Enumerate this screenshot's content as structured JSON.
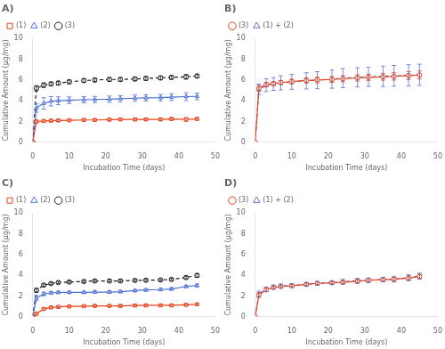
{
  "chart_data": [
    {
      "type": "line",
      "title": "A)",
      "xlabel": "Incubation Time (days)",
      "ylabel": "Cumulative Amount (µg/mg)",
      "x": [
        0,
        1,
        3,
        5,
        7,
        10,
        14,
        17,
        21,
        24,
        28,
        31,
        35,
        38,
        42,
        45
      ],
      "series": [
        {
          "name": "(1)",
          "color": "#e8401a",
          "marker": "square",
          "line_style": "solid",
          "values": [
            0,
            2.0,
            2.05,
            2.08,
            2.1,
            2.12,
            2.15,
            2.15,
            2.18,
            2.2,
            2.2,
            2.2,
            2.2,
            2.25,
            2.2,
            2.25
          ],
          "yerr": [
            0,
            0.12,
            0.1,
            0.1,
            0.1,
            0.1,
            0.1,
            0.1,
            0.1,
            0.1,
            0.1,
            0.1,
            0.1,
            0.12,
            0.18,
            0.1
          ]
        },
        {
          "name": "(2)",
          "color": "#4a6fd4",
          "marker": "triangle",
          "line_style": "solid",
          "values": [
            0,
            3.3,
            3.75,
            3.95,
            4.0,
            4.05,
            4.1,
            4.12,
            4.15,
            4.2,
            4.25,
            4.28,
            4.3,
            4.35,
            4.4,
            4.42
          ],
          "yerr": [
            0,
            0.4,
            0.55,
            0.45,
            0.38,
            0.32,
            0.3,
            0.3,
            0.3,
            0.3,
            0.3,
            0.3,
            0.3,
            0.32,
            0.38,
            0.32
          ]
        },
        {
          "name": "(3)",
          "color": "#1a1a1a",
          "marker": "circle",
          "line_style": "dashed",
          "values": [
            0,
            5.2,
            5.5,
            5.62,
            5.7,
            5.82,
            5.95,
            6.0,
            6.05,
            6.05,
            6.1,
            6.15,
            6.2,
            6.25,
            6.3,
            6.38
          ],
          "yerr": [
            0,
            0.25,
            0.22,
            0.18,
            0.18,
            0.18,
            0.18,
            0.18,
            0.18,
            0.18,
            0.18,
            0.18,
            0.18,
            0.18,
            0.22,
            0.18
          ]
        }
      ],
      "xlim": [
        0,
        50
      ],
      "xticks": [
        0,
        10,
        20,
        30,
        40,
        50
      ],
      "ylim": [
        0,
        10
      ],
      "yticks": [
        0,
        2,
        4,
        6,
        8,
        10
      ],
      "grid": false,
      "legend": "upper left"
    },
    {
      "type": "line",
      "title": "B)",
      "xlabel": "Incubation Time (days)",
      "ylabel": "Cumulative Amount (µg/mg)",
      "x": [
        0,
        1,
        3,
        5,
        7,
        10,
        14,
        17,
        21,
        24,
        28,
        31,
        35,
        38,
        42,
        45
      ],
      "series": [
        {
          "name": "(3)",
          "color": "#e8401a",
          "marker": "circle",
          "line_style": "solid",
          "values": [
            0,
            5.2,
            5.55,
            5.65,
            5.75,
            5.85,
            5.95,
            6.0,
            6.05,
            6.12,
            6.2,
            6.25,
            6.3,
            6.35,
            6.42,
            6.48
          ],
          "yerr": [
            0,
            0.28,
            0.22,
            0.18,
            0.18,
            0.22,
            0.25,
            0.28,
            0.28,
            0.3,
            0.3,
            0.3,
            0.32,
            0.35,
            0.38,
            0.38
          ]
        },
        {
          "name": "(1) + (2)",
          "color": "#6070c8",
          "marker": "triangle",
          "line_style": "dashed",
          "values": [
            0,
            5.1,
            5.5,
            5.62,
            5.72,
            5.82,
            5.92,
            5.98,
            6.08,
            6.18,
            6.25,
            6.3,
            6.35,
            6.4,
            6.45,
            6.5
          ],
          "yerr": [
            0,
            0.5,
            0.62,
            0.62,
            0.68,
            0.72,
            0.78,
            0.82,
            0.88,
            0.92,
            0.92,
            0.92,
            0.98,
            1.0,
            1.02,
            1.02
          ]
        }
      ],
      "xlim": [
        0,
        50
      ],
      "xticks": [
        0,
        10,
        20,
        30,
        40,
        50
      ],
      "ylim": [
        0,
        10
      ],
      "yticks": [
        0,
        2,
        4,
        6,
        8,
        10
      ],
      "grid": false,
      "legend": "upper left"
    },
    {
      "type": "line",
      "title": "C)",
      "xlabel": "Incubation Time (days)",
      "ylabel": "Cumulative Amount (µg/mg)",
      "x": [
        0,
        1,
        3,
        5,
        7,
        10,
        14,
        17,
        21,
        24,
        28,
        31,
        35,
        38,
        42,
        45
      ],
      "series": [
        {
          "name": "(1)",
          "color": "#e8401a",
          "marker": "square",
          "line_style": "solid",
          "values": [
            0,
            0.3,
            0.75,
            0.9,
            0.95,
            1.0,
            1.02,
            1.05,
            1.05,
            1.05,
            1.08,
            1.1,
            1.1,
            1.1,
            1.15,
            1.2
          ],
          "yerr": [
            0,
            0.12,
            0.1,
            0.08,
            0.08,
            0.08,
            0.08,
            0.08,
            0.08,
            0.08,
            0.08,
            0.08,
            0.08,
            0.08,
            0.08,
            0.08
          ]
        },
        {
          "name": "(2)",
          "color": "#4a6fd4",
          "marker": "triangle",
          "line_style": "solid",
          "values": [
            0,
            1.8,
            2.2,
            2.3,
            2.35,
            2.35,
            2.35,
            2.38,
            2.38,
            2.42,
            2.52,
            2.58,
            2.62,
            2.68,
            2.92,
            3.02
          ],
          "yerr": [
            0,
            0.25,
            0.18,
            0.12,
            0.12,
            0.12,
            0.12,
            0.12,
            0.12,
            0.12,
            0.12,
            0.12,
            0.12,
            0.12,
            0.12,
            0.15
          ]
        },
        {
          "name": "(3)",
          "color": "#1a1a1a",
          "marker": "circle",
          "line_style": "dashed",
          "values": [
            0,
            2.55,
            3.05,
            3.2,
            3.3,
            3.35,
            3.4,
            3.45,
            3.45,
            3.45,
            3.5,
            3.52,
            3.55,
            3.6,
            3.78,
            3.98
          ],
          "yerr": [
            0,
            0.18,
            0.12,
            0.1,
            0.1,
            0.1,
            0.1,
            0.1,
            0.1,
            0.1,
            0.1,
            0.1,
            0.1,
            0.1,
            0.12,
            0.18
          ]
        }
      ],
      "xlim": [
        0,
        50
      ],
      "xticks": [
        0,
        10,
        20,
        30,
        40,
        50
      ],
      "ylim": [
        0,
        10
      ],
      "yticks": [
        0,
        2,
        4,
        6,
        8,
        10
      ],
      "grid": false,
      "legend": "upper left"
    },
    {
      "type": "line",
      "title": "D)",
      "xlabel": "Incubation Time (days)",
      "ylabel": "Cumulative Amount (µg/mg)",
      "x": [
        0,
        1,
        3,
        5,
        7,
        10,
        14,
        17,
        21,
        24,
        28,
        31,
        35,
        38,
        42,
        45
      ],
      "series": [
        {
          "name": "(3)",
          "color": "#e8401a",
          "marker": "circle",
          "line_style": "solid",
          "values": [
            0,
            2.1,
            2.6,
            2.82,
            2.92,
            2.98,
            3.12,
            3.22,
            3.28,
            3.32,
            3.42,
            3.52,
            3.58,
            3.62,
            3.72,
            3.88
          ],
          "yerr": [
            0,
            0.22,
            0.18,
            0.12,
            0.12,
            0.12,
            0.12,
            0.12,
            0.12,
            0.15,
            0.18,
            0.18,
            0.18,
            0.18,
            0.22,
            0.22
          ]
        },
        {
          "name": "(1) + (2)",
          "color": "#6070c8",
          "marker": "triangle",
          "line_style": "dashed",
          "values": [
            0,
            2.2,
            2.65,
            2.88,
            2.98,
            3.02,
            3.12,
            3.22,
            3.28,
            3.38,
            3.48,
            3.52,
            3.58,
            3.62,
            3.78,
            3.92
          ],
          "yerr": [
            0,
            0.28,
            0.22,
            0.18,
            0.18,
            0.18,
            0.18,
            0.18,
            0.18,
            0.22,
            0.22,
            0.22,
            0.22,
            0.28,
            0.28,
            0.28
          ]
        }
      ],
      "xlim": [
        0,
        50
      ],
      "xticks": [
        0,
        10,
        20,
        30,
        40,
        50
      ],
      "ylim": [
        0,
        10
      ],
      "yticks": [
        0,
        2,
        4,
        6,
        8,
        10
      ],
      "grid": false,
      "legend": "upper left"
    }
  ]
}
